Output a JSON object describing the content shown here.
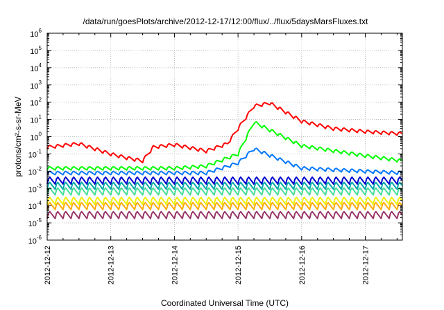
{
  "chart_data": {
    "type": "line",
    "title": "/data/run/goesPlots/archive/2012-12-17/12:00/flux/../flux/5daysMarsFluxes.txt",
    "xlabel": "Coordinated Universal Time (UTC)",
    "ylabel": "protons/cm²-s-sr-MeV",
    "y_scale": "log",
    "ylim": [
      1e-06,
      1000000.0
    ],
    "y_ticks": [
      {
        "base": "10",
        "exp": "-6"
      },
      {
        "base": "10",
        "exp": "-5"
      },
      {
        "base": "10",
        "exp": "-4"
      },
      {
        "base": "10",
        "exp": "-3"
      },
      {
        "base": "10",
        "exp": "-2"
      },
      {
        "base": "10",
        "exp": "-1"
      },
      {
        "base": "10",
        "exp": "0"
      },
      {
        "base": "10",
        "exp": "1"
      },
      {
        "base": "10",
        "exp": "2"
      },
      {
        "base": "10",
        "exp": "3"
      },
      {
        "base": "10",
        "exp": "4"
      },
      {
        "base": "10",
        "exp": "5"
      },
      {
        "base": "10",
        "exp": "6"
      }
    ],
    "xlim": [
      "2012-12-12",
      "2012-12-17 14:00"
    ],
    "x_tick_labels": [
      "2012-12-12",
      "2012-12-13",
      "2012-12-14",
      "2012-12-15",
      "2012-12-16",
      "2012-12-17"
    ],
    "grid": true,
    "series": [
      {
        "color": "#ff0000",
        "x": [
          "2012-12-12 00:00",
          "2012-12-12 12:00",
          "2012-12-13 00:00",
          "2012-12-13 06:00",
          "2012-12-13 12:00",
          "2012-12-13 16:00",
          "2012-12-14 00:00",
          "2012-12-14 12:00",
          "2012-12-14 20:00",
          "2012-12-15 00:00",
          "2012-12-15 06:00",
          "2012-12-15 12:00",
          "2012-12-16 00:00",
          "2012-12-16 12:00",
          "2012-12-17 00:00",
          "2012-12-17 14:00"
        ],
        "values": [
          0.25,
          0.4,
          0.1,
          0.06,
          0.04,
          0.25,
          0.35,
          0.15,
          0.4,
          3,
          60,
          90,
          8,
          3,
          2,
          1.5
        ]
      },
      {
        "color": "#00ff00",
        "x": [
          "2012-12-12 00:00",
          "2012-12-13 00:00",
          "2012-12-14 00:00",
          "2012-12-14 12:00",
          "2012-12-15 00:00",
          "2012-12-15 06:00",
          "2012-12-16 00:00",
          "2012-12-17 00:00",
          "2012-12-17 14:00"
        ],
        "values": [
          0.015,
          0.015,
          0.015,
          0.02,
          0.1,
          7,
          0.3,
          0.08,
          0.04
        ]
      },
      {
        "color": "#0077ff",
        "x": [
          "2012-12-12 00:00",
          "2012-12-14 12:00",
          "2012-12-15 00:00",
          "2012-12-15 06:00",
          "2012-12-16 00:00",
          "2012-12-17 00:00",
          "2012-12-17 14:00"
        ],
        "values": [
          0.008,
          0.008,
          0.03,
          0.2,
          0.015,
          0.01,
          0.008
        ]
      },
      {
        "color": "#0000cc",
        "x": [
          "2012-12-12 00:00",
          "2012-12-17 14:00"
        ],
        "values": [
          0.003,
          0.003
        ]
      },
      {
        "color": "#00aaaa",
        "x": [
          "2012-12-12 00:00",
          "2012-12-17 14:00"
        ],
        "values": [
          0.0015,
          0.0015
        ]
      },
      {
        "color": "#44dd99",
        "x": [
          "2012-12-12 00:00",
          "2012-12-17 14:00"
        ],
        "values": [
          0.0007,
          0.0007
        ]
      },
      {
        "color": "#eeee00",
        "x": [
          "2012-12-12 00:00",
          "2012-12-17 14:00"
        ],
        "values": [
          0.0002,
          0.0002
        ]
      },
      {
        "color": "#ffaa00",
        "x": [
          "2012-12-12 00:00",
          "2012-12-17 14:00"
        ],
        "values": [
          0.0001,
          0.0001
        ]
      },
      {
        "color": "#993366",
        "x": [
          "2012-12-12 00:00",
          "2012-12-17 14:00"
        ],
        "values": [
          3e-05,
          3e-05
        ]
      }
    ]
  }
}
